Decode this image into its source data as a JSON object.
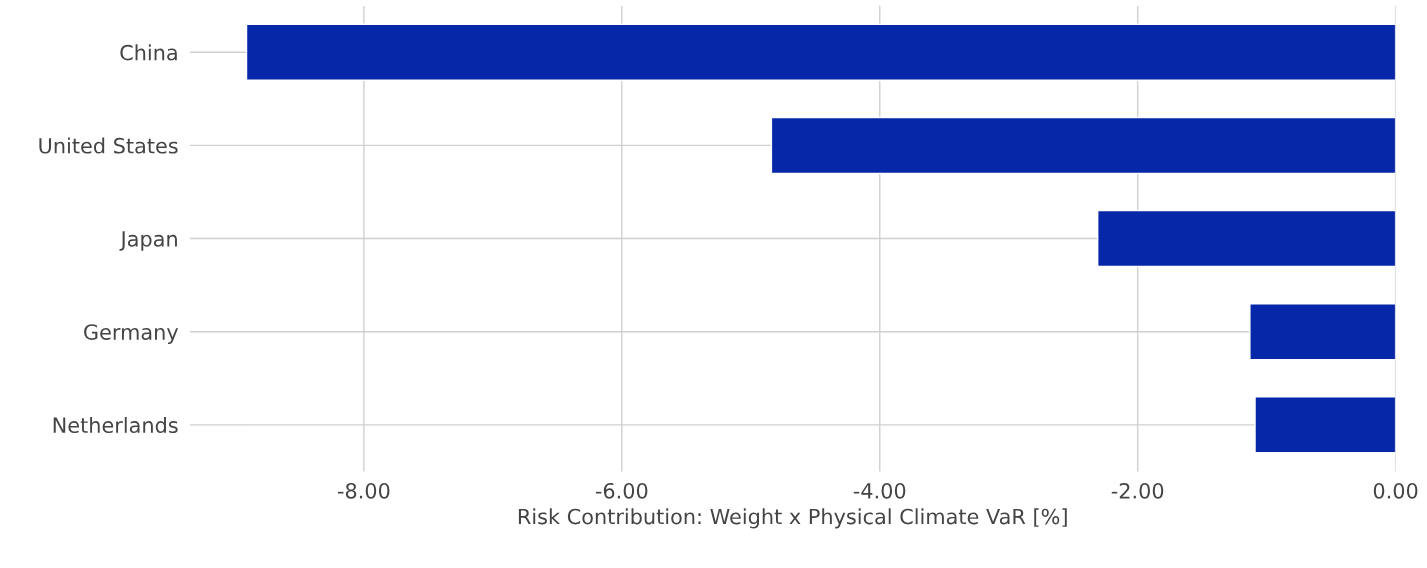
{
  "chart_data": {
    "type": "bar",
    "orientation": "horizontal",
    "xlabel": "Risk Contribution: Weight x Physical Climate VaR [%]",
    "categories": [
      "China",
      "United States",
      "Japan",
      "Germany",
      "Netherlands"
    ],
    "values": [
      -8.91,
      -4.84,
      -2.31,
      -1.13,
      -1.09
    ],
    "color": "#0527a8",
    "xlim": [
      -9.35,
      0
    ],
    "xticks": [
      {
        "value": -8,
        "label": "-8.00"
      },
      {
        "value": -6,
        "label": "-6.00"
      },
      {
        "value": -4,
        "label": "-4.00"
      },
      {
        "value": -2,
        "label": "-2.00"
      },
      {
        "value": 0,
        "label": "0.00"
      }
    ],
    "grid": true
  }
}
